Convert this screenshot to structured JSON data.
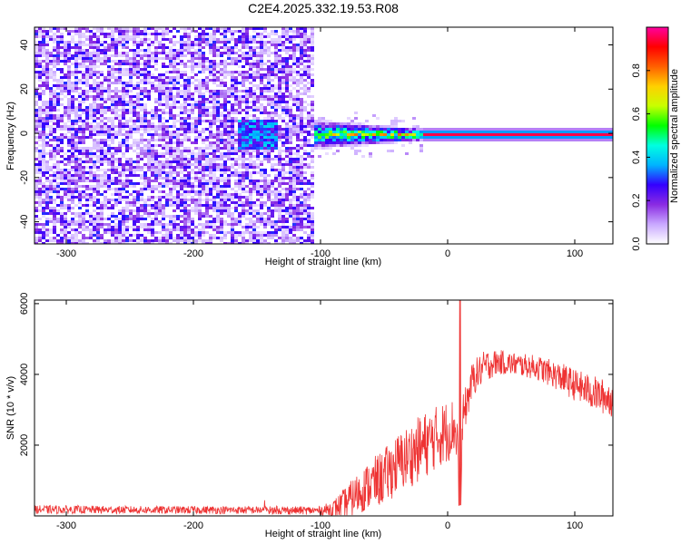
{
  "chart_data": [
    {
      "type": "heatmap",
      "title": "C2E4.2025.332.19.53.R08",
      "xlabel": "Height of straight line (km)",
      "ylabel": "Frequency (Hz)",
      "xlim": [
        -325,
        130
      ],
      "ylim": [
        -50,
        48
      ],
      "xticks": [
        -300,
        -200,
        -100,
        0,
        100
      ],
      "yticks": [
        -40,
        -20,
        0,
        20,
        40
      ],
      "colorbar": {
        "label": "Normalized spectral amplitude",
        "range": [
          0,
          1
        ],
        "ticks": [
          "0.0",
          "0.2",
          "0.4",
          "0.6",
          "0.8"
        ],
        "colors": [
          "#ffffff",
          "#c9a8ff",
          "#8a2be2",
          "#3300ff",
          "#00b4ff",
          "#00ffe0",
          "#00ff00",
          "#c8ff00",
          "#ffd000",
          "#ff6000",
          "#ff0000",
          "#ff00a0"
        ]
      },
      "regions": [
        {
          "name": "broadband noise",
          "x_range": [
            -325,
            -105
          ],
          "freq_range": [
            -50,
            48
          ],
          "amplitude": 0.15
        },
        {
          "name": "noise cluster",
          "x_range": [
            -165,
            -135
          ],
          "freq_center": 0,
          "amplitude": 0.3
        },
        {
          "name": "emerging signal",
          "x_range": [
            -105,
            -20
          ],
          "freq_center": 0,
          "amplitude": 0.55
        },
        {
          "name": "narrow carrier",
          "x_range": [
            -20,
            130
          ],
          "freq_center": 0,
          "amplitude": 0.95
        }
      ]
    },
    {
      "type": "line",
      "xlabel": "Height of straight line (km)",
      "ylabel": "SNR (10 * v/v)",
      "xlim": [
        -325,
        130
      ],
      "ylim": [
        0,
        6100
      ],
      "xticks": [
        -300,
        -200,
        -100,
        0,
        100
      ],
      "yticks": [
        2000,
        4000,
        6000
      ],
      "series": [
        {
          "name": "SNR",
          "color": "#ee3333",
          "x": [
            -325,
            -250,
            -150,
            -100,
            -90,
            -80,
            -70,
            -60,
            -50,
            -40,
            -30,
            -20,
            -10,
            0,
            5,
            8,
            10,
            12,
            20,
            30,
            40,
            50,
            60,
            70,
            80,
            90,
            100,
            110,
            120,
            130
          ],
          "mean": [
            180,
            170,
            165,
            150,
            200,
            380,
            650,
            900,
            1100,
            1450,
            1700,
            1950,
            2200,
            2400,
            2550,
            2100,
            400,
            2800,
            3900,
            4250,
            4350,
            4300,
            4250,
            4200,
            4050,
            3900,
            3700,
            3550,
            3400,
            3300
          ],
          "spread": [
            120,
            110,
            110,
            120,
            250,
            450,
            600,
            700,
            800,
            850,
            900,
            950,
            900,
            900,
            800,
            700,
            400,
            600,
            500,
            450,
            350,
            330,
            330,
            350,
            380,
            420,
            450,
            480,
            500,
            520
          ]
        }
      ]
    }
  ]
}
